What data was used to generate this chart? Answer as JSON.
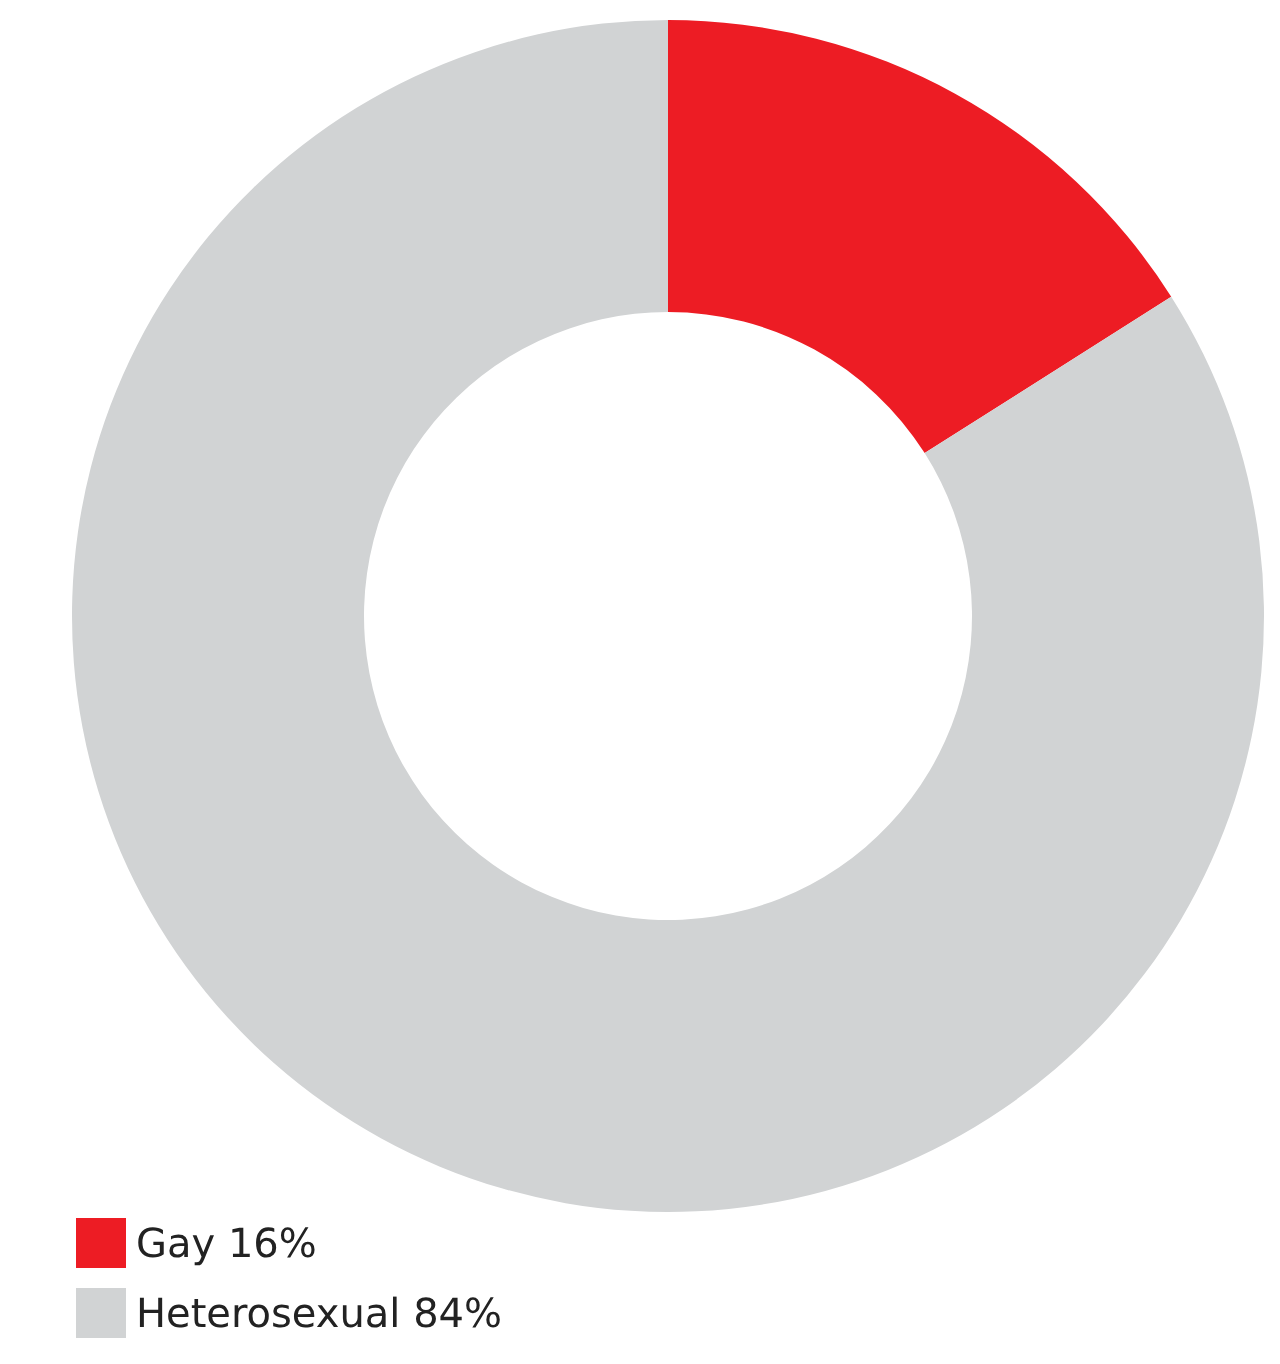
{
  "chart_data": {
    "type": "donut",
    "categories": [
      "Gay",
      "Heterosexual"
    ],
    "values": [
      16,
      84
    ],
    "value_labels": [
      "16%",
      "84%"
    ],
    "colors": [
      "#ed1c24",
      "#d1d3d4"
    ],
    "legend": "bottom left"
  }
}
